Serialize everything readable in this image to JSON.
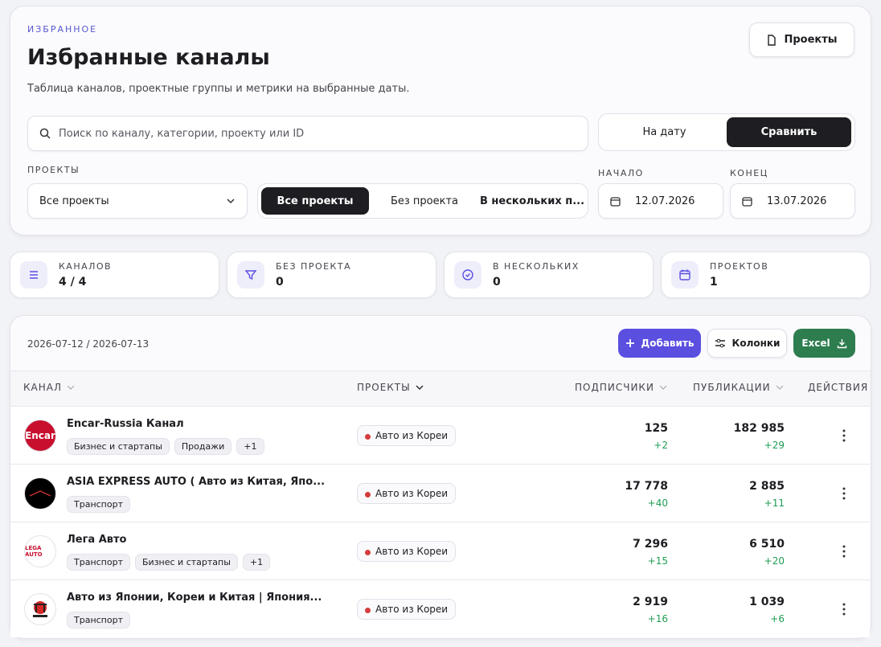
{
  "header": {
    "eyebrow": "ИЗБРАННОЕ",
    "title": "Избранные каналы",
    "subtitle": "Таблица каналов, проектные группы и метрики на выбранные даты.",
    "projects_button": "Проекты"
  },
  "filters": {
    "search_placeholder": "Поиск по каналу, категории, проекту или ID",
    "mode_tabs": [
      "На дату",
      "Сравнить"
    ],
    "projects_label": "ПРОЕКТЫ",
    "projects_select": "Все проекты",
    "project_tabs": [
      "Все проекты",
      "Без проекта",
      "В нескольких п..."
    ],
    "start_label": "НАЧАЛО",
    "start_date": "12.07.2026",
    "end_label": "КОНЕЦ",
    "end_date": "13.07.2026"
  },
  "stats": [
    {
      "label": "КАНАЛОВ",
      "value": "4 / 4"
    },
    {
      "label": "БЕЗ ПРОЕКТА",
      "value": "0"
    },
    {
      "label": "В НЕСКОЛЬКИХ",
      "value": "0"
    },
    {
      "label": "ПРОЕКТОВ",
      "value": "1"
    }
  ],
  "table": {
    "range": "2026-07-12 / 2026-07-13",
    "buttons": [
      "Добавить",
      "Колонки",
      "Excel"
    ],
    "columns": [
      "КАНАЛ",
      "ПРОЕКТЫ",
      "ПОДПИСЧИКИ",
      "ПУБЛИКАЦИИ",
      "ДЕЙСТВИЯ"
    ],
    "rows": [
      {
        "logo_text": "Encar",
        "name": "Encar-Russia Канал",
        "tags": [
          "Бизнес и стартапы",
          "Продажи",
          "+1"
        ],
        "project": "Авто из Кореи",
        "subscribers": "125",
        "subscribers_delta": "+2",
        "posts": "182 985",
        "posts_delta": "+29"
      },
      {
        "name": "ASIA EXPRESS AUTO ( Авто из Китая, Япо...",
        "tags": [
          "Транспорт"
        ],
        "project": "Авто из Кореи",
        "subscribers": "17 778",
        "subscribers_delta": "+40",
        "posts": "2 885",
        "posts_delta": "+11"
      },
      {
        "logo_text": "LEGA AUTO",
        "name": "Лега Авто",
        "tags": [
          "Транспорт",
          "Бизнес и стартапы",
          "+1"
        ],
        "project": "Авто из Кореи",
        "subscribers": "7 296",
        "subscribers_delta": "+15",
        "posts": "6 510",
        "posts_delta": "+20"
      },
      {
        "name": "Авто из Японии, Кореи и Китая | Япония...",
        "tags": [
          "Транспорт"
        ],
        "project": "Авто из Кореи",
        "subscribers": "2 919",
        "subscribers_delta": "+16",
        "posts": "1 039",
        "posts_delta": "+6"
      }
    ]
  }
}
